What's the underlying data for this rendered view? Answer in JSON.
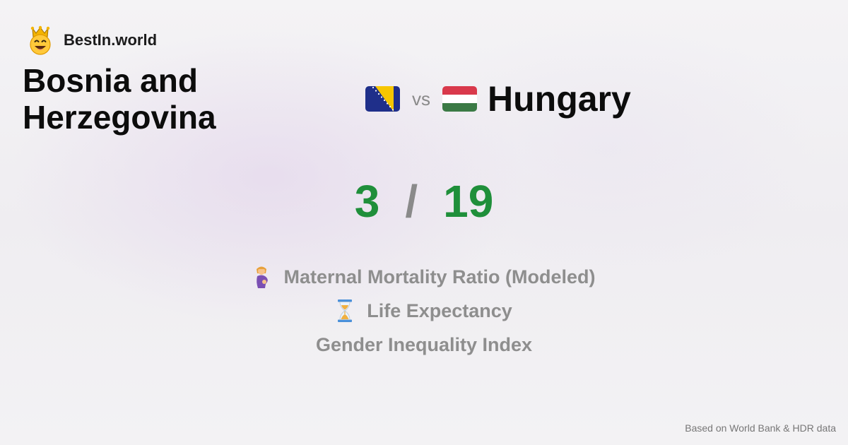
{
  "brand": {
    "name": "BestIn.world",
    "icon": "crowned-smiley-icon"
  },
  "comparison": {
    "left_country": "Bosnia and Herzegovina",
    "right_country": "Hungary",
    "vs_label": "vs",
    "left_flag": "bosnia-flag-icon",
    "right_flag": "hungary-flag-icon"
  },
  "score": {
    "left": "3",
    "separator": "/",
    "right": "19"
  },
  "metrics": [
    {
      "label": "Maternal Mortality Ratio (Modeled)",
      "icon": "pregnant-woman-icon"
    },
    {
      "label": "Life Expectancy",
      "icon": "hourglass-icon"
    },
    {
      "label": "Gender Inequality Index"
    }
  ],
  "footer": {
    "source": "Based on World Bank & HDR data"
  },
  "colors": {
    "score_green": "#1f8f3a",
    "muted_gray": "#8e8e8e",
    "text_dark": "#0c0c0c"
  }
}
